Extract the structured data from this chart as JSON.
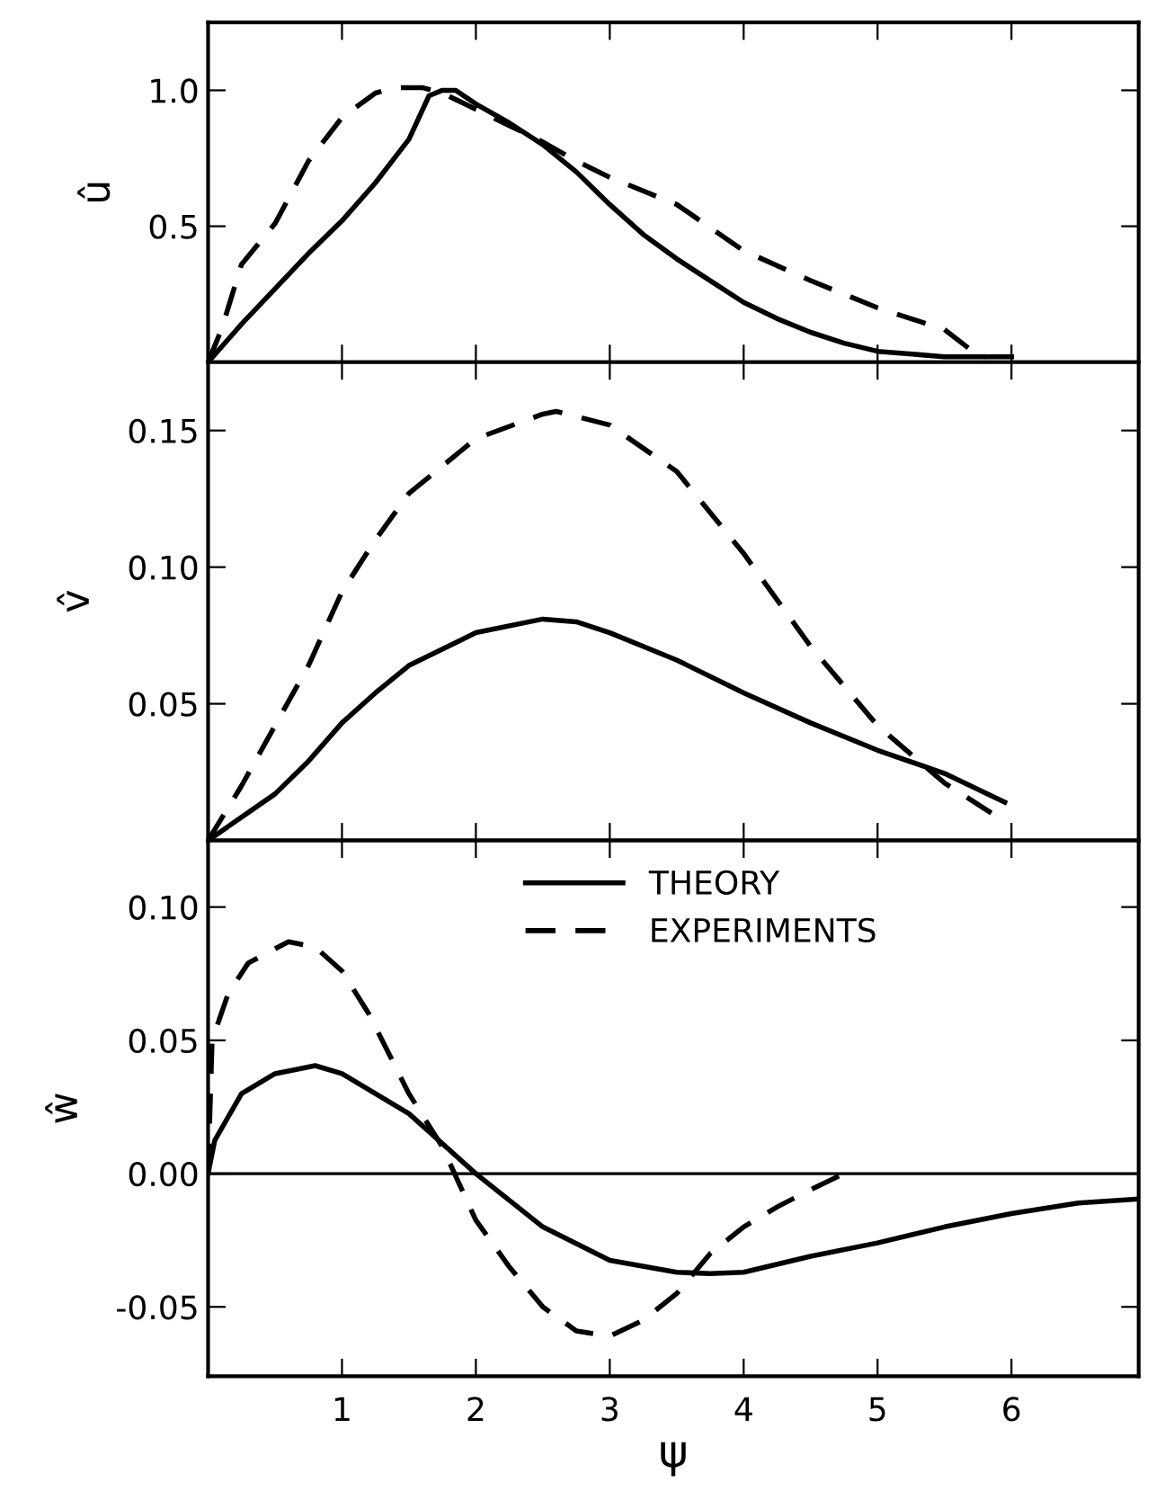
{
  "chart_data": [
    {
      "type": "line",
      "ylabel": "û",
      "xlim": [
        0,
        6.95
      ],
      "xticks": [
        {
          "value": 1,
          "label": null
        },
        {
          "value": 2,
          "label": null
        },
        {
          "value": 3,
          "label": null
        },
        {
          "value": 4,
          "label": null
        },
        {
          "value": 5,
          "label": null
        },
        {
          "value": 6,
          "label": null
        }
      ],
      "ylim": [
        0,
        1.25
      ],
      "yticks": [
        {
          "value": 0.5,
          "label": "0.5"
        },
        {
          "value": 1.0,
          "label": "1.0"
        }
      ],
      "tick_labels": "y",
      "grid": false,
      "legend": false,
      "series": [
        {
          "color": "#000000",
          "line_style": "solid",
          "x": [
            0,
            0.25,
            0.5,
            0.75,
            1.0,
            1.25,
            1.5,
            1.65,
            1.75,
            1.85,
            2.0,
            2.25,
            2.5,
            2.75,
            3.0,
            3.25,
            3.5,
            3.75,
            4.0,
            4.25,
            4.5,
            4.75,
            5.0,
            5.5,
            6.0
          ],
          "values": [
            0,
            0.14,
            0.27,
            0.4,
            0.52,
            0.66,
            0.82,
            0.98,
            1.0,
            1.0,
            0.95,
            0.88,
            0.8,
            0.7,
            0.58,
            0.47,
            0.38,
            0.3,
            0.22,
            0.16,
            0.11,
            0.07,
            0.04,
            0.02,
            0.02
          ]
        },
        {
          "color": "#000000",
          "line_style": "dashed",
          "x": [
            0,
            0.1,
            0.25,
            0.5,
            0.75,
            1.0,
            1.25,
            1.4,
            1.6,
            1.75,
            2.0,
            2.25,
            2.5,
            2.75,
            3.0,
            3.5,
            4.0,
            4.5,
            5.0,
            5.5,
            5.71,
            5.8
          ],
          "values": [
            0,
            0.12,
            0.36,
            0.51,
            0.74,
            0.9,
            0.99,
            1.01,
            1.01,
            0.99,
            0.93,
            0.87,
            0.81,
            0.74,
            0.68,
            0.58,
            0.41,
            0.3,
            0.2,
            0.12,
            0.04,
            0.01
          ]
        }
      ]
    },
    {
      "type": "line",
      "ylabel": "v̂",
      "xlim": [
        0,
        6.95
      ],
      "xticks": [
        {
          "value": 1,
          "label": null
        },
        {
          "value": 2,
          "label": null
        },
        {
          "value": 3,
          "label": null
        },
        {
          "value": 4,
          "label": null
        },
        {
          "value": 5,
          "label": null
        },
        {
          "value": 6,
          "label": null
        }
      ],
      "ylim": [
        0,
        0.175
      ],
      "yticks": [
        {
          "value": 0.05,
          "label": "0.05"
        },
        {
          "value": 0.1,
          "label": "0.10"
        },
        {
          "value": 0.15,
          "label": "0.15"
        }
      ],
      "tick_labels": "y",
      "grid": false,
      "legend": false,
      "series": [
        {
          "color": "#000000",
          "line_style": "solid",
          "x": [
            0,
            0.5,
            0.75,
            1.0,
            1.25,
            1.5,
            2.0,
            2.5,
            2.75,
            3.0,
            3.5,
            4.0,
            4.5,
            5.0,
            5.5,
            5.95
          ],
          "values": [
            0,
            0.017,
            0.029,
            0.043,
            0.054,
            0.064,
            0.076,
            0.081,
            0.08,
            0.076,
            0.066,
            0.054,
            0.043,
            0.033,
            0.0245,
            0.014
          ]
        },
        {
          "color": "#000000",
          "line_style": "dashed",
          "x": [
            0,
            0.25,
            0.5,
            0.75,
            1.0,
            1.25,
            1.5,
            2.0,
            2.5,
            2.6,
            3.0,
            3.5,
            4.0,
            4.5,
            5.0,
            5.5,
            5.85
          ],
          "values": [
            0,
            0.02,
            0.042,
            0.064,
            0.091,
            0.11,
            0.127,
            0.147,
            0.156,
            0.157,
            0.152,
            0.135,
            0.105,
            0.071,
            0.042,
            0.021,
            0.01
          ]
        }
      ]
    },
    {
      "type": "line",
      "ylabel": "ŵ",
      "xlabel": "ψ",
      "xlim": [
        0,
        6.95
      ],
      "xticks": [
        1,
        2,
        3,
        4,
        5,
        6
      ],
      "ylim": [
        -0.076,
        0.125
      ],
      "yticks": [
        {
          "value": -0.05,
          "label": "-0.05"
        },
        {
          "value": 0.0,
          "label": "0.00"
        },
        {
          "value": 0.05,
          "label": "0.05"
        },
        {
          "value": 0.1,
          "label": "0.10"
        }
      ],
      "grid": false,
      "legend": "top",
      "ref_lines": [
        {
          "axis": "y",
          "value": 0,
          "label": null,
          "color": "#000000"
        }
      ],
      "series": [
        {
          "name": "THEORY",
          "color": "#000000",
          "line_style": "solid",
          "x": [
            0,
            0.05,
            0.25,
            0.5,
            0.8,
            1.0,
            1.5,
            2.0,
            2.5,
            3.0,
            3.5,
            3.75,
            4.0,
            4.5,
            5.0,
            5.5,
            6.0,
            6.5,
            6.95
          ],
          "values": [
            0,
            0.0125,
            0.03,
            0.0375,
            0.0405,
            0.0375,
            0.0225,
            0,
            -0.02,
            -0.0325,
            -0.037,
            -0.0375,
            -0.037,
            -0.031,
            -0.026,
            -0.02,
            -0.015,
            -0.011,
            -0.0095
          ]
        },
        {
          "name": "EXPERIMENTS",
          "color": "#000000",
          "line_style": "dashed",
          "x": [
            0,
            0.03,
            0.15,
            0.3,
            0.6,
            0.8,
            1.0,
            1.2,
            1.5,
            1.75,
            2.0,
            2.25,
            2.5,
            2.75,
            3.0,
            3.25,
            3.5,
            3.75,
            4.0,
            4.25,
            4.5,
            4.75
          ],
          "values": [
            0,
            0.05,
            0.0675,
            0.079,
            0.087,
            0.085,
            0.076,
            0.06,
            0.03,
            0.01,
            -0.0175,
            -0.035,
            -0.05,
            -0.059,
            -0.061,
            -0.055,
            -0.045,
            -0.03,
            -0.02,
            -0.0125,
            -0.006,
            0
          ]
        }
      ]
    }
  ]
}
